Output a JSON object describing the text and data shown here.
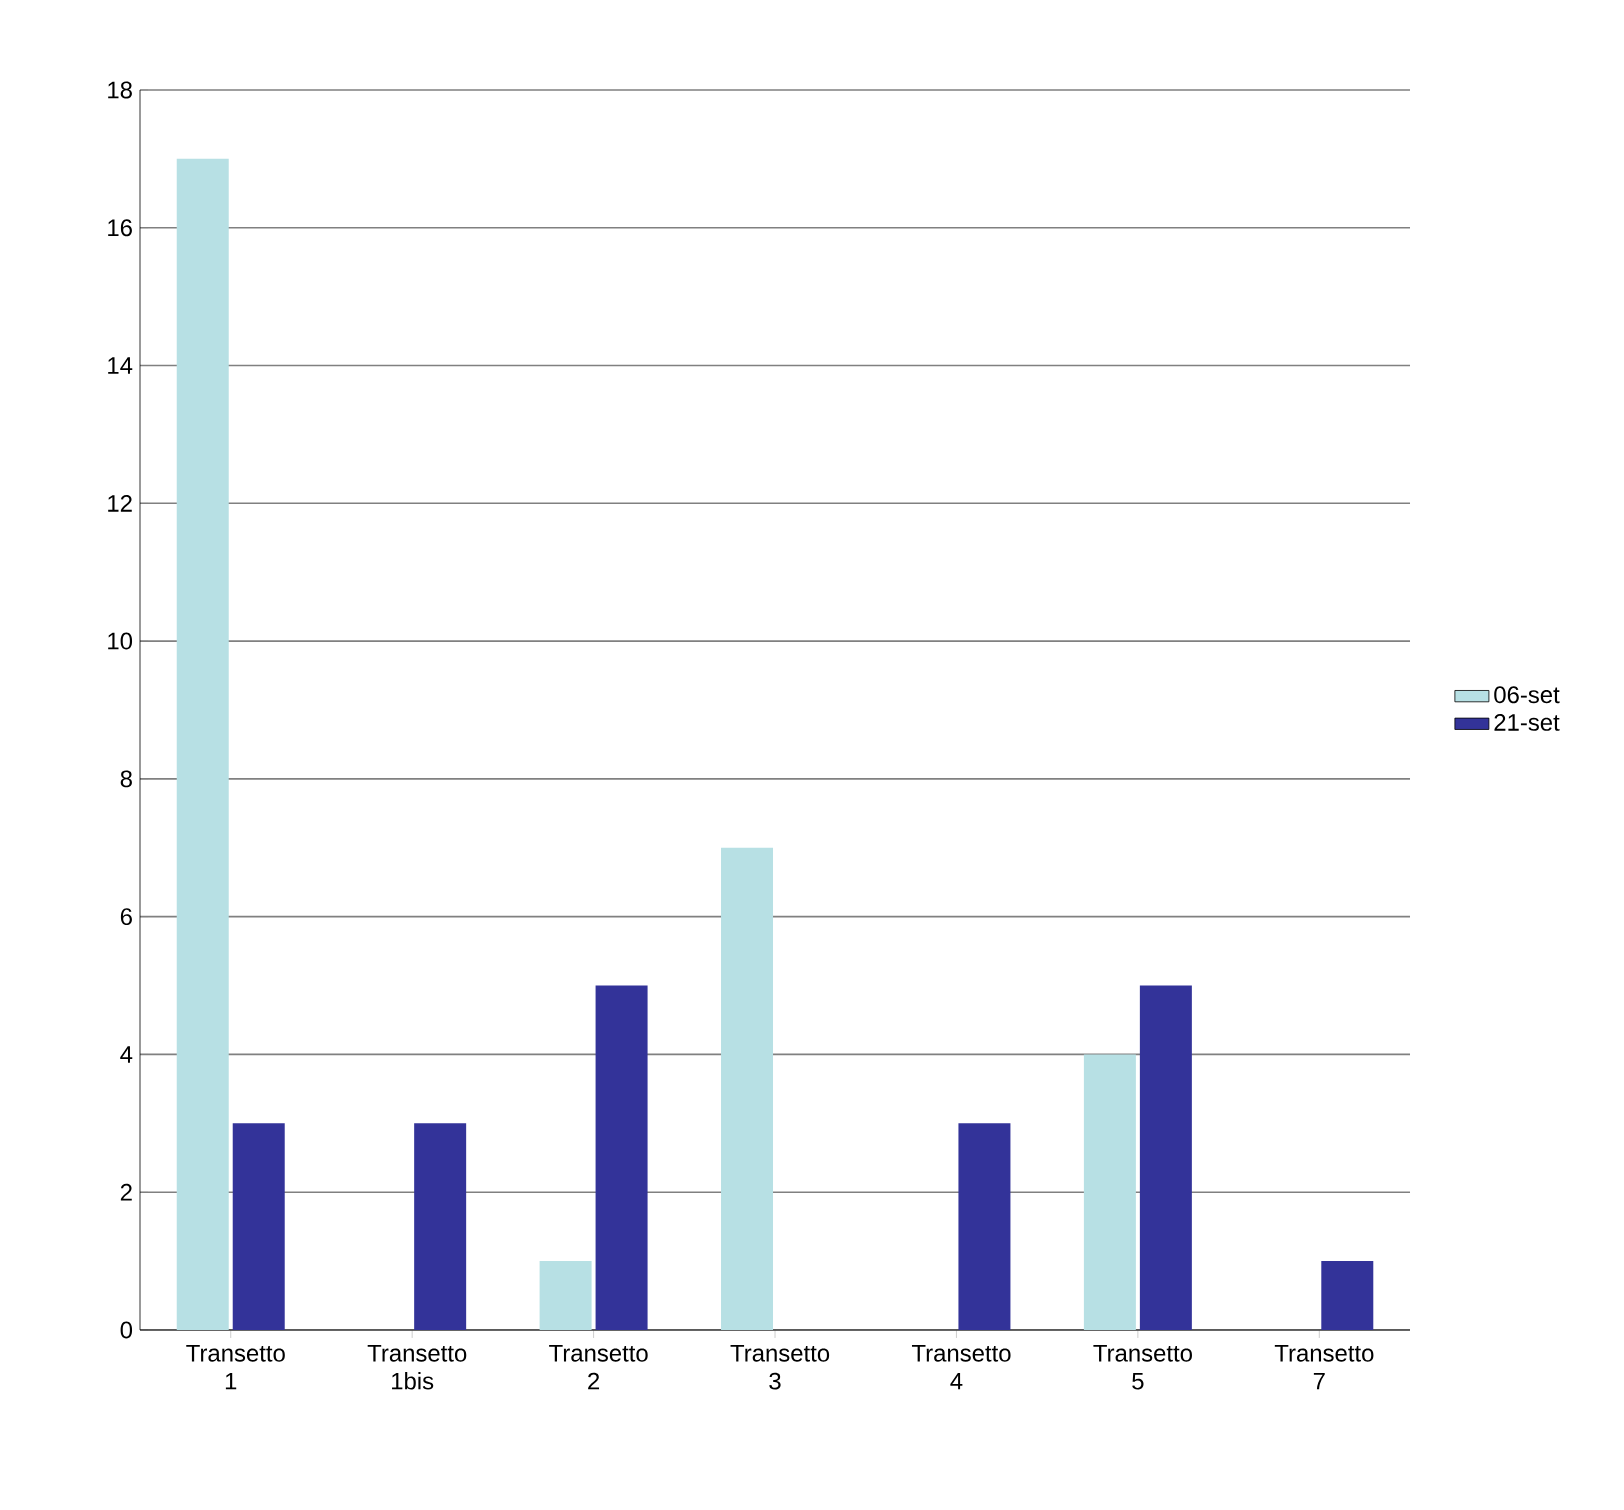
{
  "chart_data": {
    "type": "bar",
    "categories": [
      "Transetto 1",
      "Transetto 1bis",
      "Transetto 2",
      "Transetto 3",
      "Transetto 4",
      "Transetto 5",
      "Transetto 7"
    ],
    "series": [
      {
        "name": "06-set",
        "color": "#b7e0e4",
        "values": [
          17,
          0,
          1,
          7,
          0,
          4,
          0
        ]
      },
      {
        "name": "21-set",
        "color": "#333399",
        "values": [
          3,
          3,
          5,
          0,
          3,
          5,
          1
        ]
      }
    ],
    "ylim": [
      0,
      18
    ],
    "yticks": [
      0,
      2,
      4,
      6,
      8,
      10,
      12,
      14,
      16,
      18
    ],
    "grid": "y",
    "legend": "right"
  }
}
